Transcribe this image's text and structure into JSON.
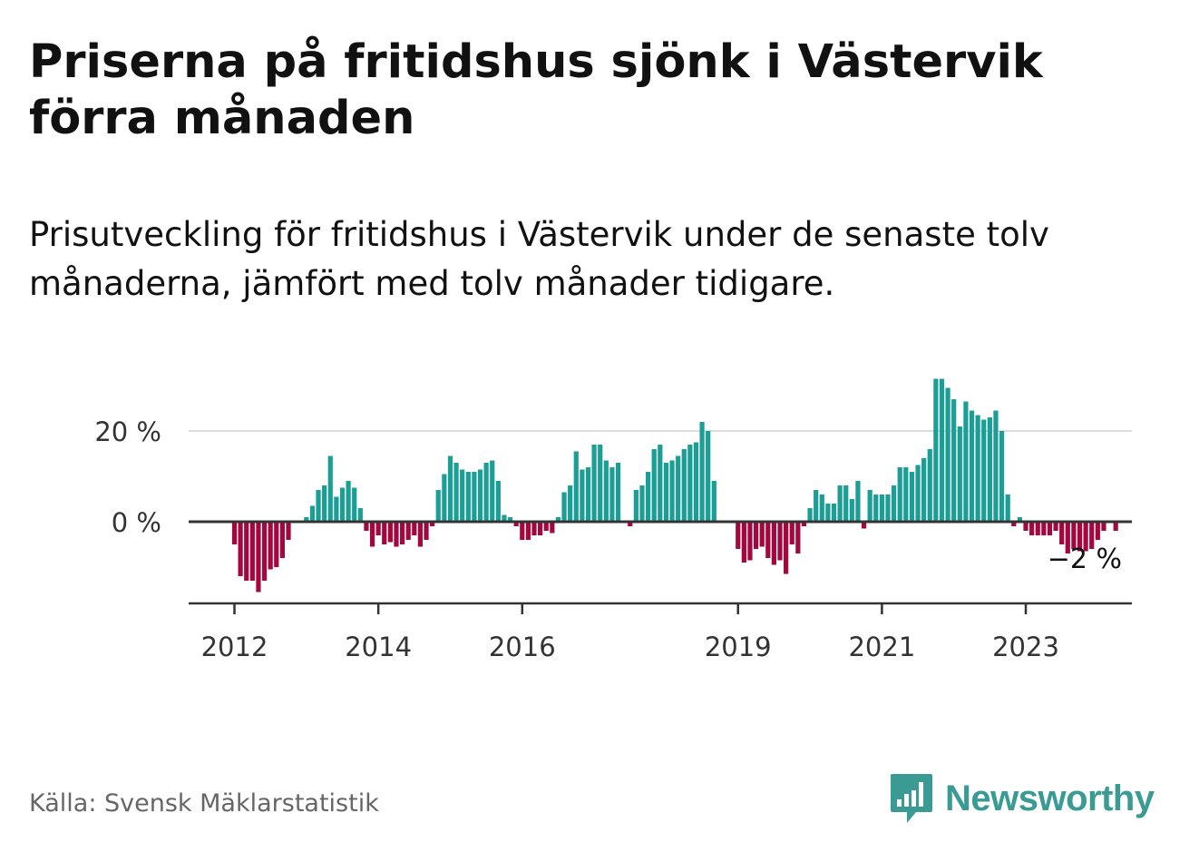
{
  "header": {
    "title": "Priserna på fritidshus sjönk i Västervik förra månaden",
    "subtitle": "Prisutveckling för fritidshus i Västervik under de senaste tolv månaderna, jämfört med tolv månader tidigare."
  },
  "footer": {
    "source": "Källa: Svensk Mäklarstatistik",
    "brand": "Newsworthy"
  },
  "colors": {
    "positive": "#1a9e96",
    "negative": "#a3073e",
    "brand": "#3a9a94",
    "axis": "#333333",
    "grid": "#dddddd"
  },
  "icons": {
    "brand_logo": "newsworthy-chart-bubble-icon"
  },
  "chart_data": {
    "type": "bar",
    "title": "Priserna på fritidshus sjönk i Västervik förra månaden",
    "subtitle": "Prisutveckling för fritidshus i Västervik under de senaste tolv månaderna, jämfört med tolv månader tidigare.",
    "unit": "%",
    "ylim": [
      -17,
      33
    ],
    "y_ticks": [
      {
        "value": 0,
        "label": "0 %"
      },
      {
        "value": 20,
        "label": "20 %"
      }
    ],
    "x_ticks": [
      {
        "index": 0,
        "label": "2012"
      },
      {
        "index": 24,
        "label": "2014"
      },
      {
        "index": 48,
        "label": "2016"
      },
      {
        "index": 84,
        "label": "2019"
      },
      {
        "index": 108,
        "label": "2021"
      },
      {
        "index": 132,
        "label": "2023"
      }
    ],
    "last_value_label": "−2 %",
    "series": [
      {
        "name": "Prisutveckling",
        "start": "2012-01",
        "frequency": "monthly",
        "values": [
          -5,
          -12,
          -13,
          -13,
          -15.5,
          -13,
          -10.5,
          -10,
          -8,
          -4,
          null,
          null,
          1,
          3.5,
          7,
          8,
          14.5,
          5.5,
          7.5,
          9,
          7.5,
          3,
          -2,
          -5.5,
          -3,
          -5,
          -4.5,
          -5.5,
          -5,
          -4,
          -3,
          -5.5,
          -4,
          -1,
          7,
          10.5,
          14.5,
          13,
          11.5,
          11,
          11,
          11.5,
          13,
          13.5,
          9,
          1.5,
          1,
          -1,
          -4,
          -4,
          -3,
          -3,
          -2,
          -2.5,
          1,
          6.5,
          8,
          15.5,
          11.5,
          12,
          17,
          17,
          13.5,
          12,
          13,
          null,
          -1,
          7,
          8,
          11,
          16,
          17,
          13,
          13.5,
          14.5,
          16,
          17,
          17.5,
          22,
          20,
          9,
          null,
          null,
          null,
          -6,
          -9,
          -8.5,
          -6,
          -5.5,
          -8,
          -9.5,
          -8.5,
          -11.5,
          -5,
          -7,
          -1,
          3,
          7,
          6,
          4,
          4,
          8,
          8,
          5,
          9,
          -1.5,
          7,
          6,
          6,
          6,
          8,
          12,
          12,
          11,
          12.5,
          14,
          16,
          31.5,
          31.5,
          29.5,
          27,
          21,
          26.5,
          24.5,
          23.5,
          22.5,
          23,
          24.5,
          20,
          6,
          -1,
          1,
          -2,
          -3,
          -3,
          -3,
          -3,
          -2,
          -5,
          -7,
          -6,
          -6.5,
          -6.5,
          -6,
          -4,
          -2,
          null,
          -2
        ]
      }
    ]
  }
}
